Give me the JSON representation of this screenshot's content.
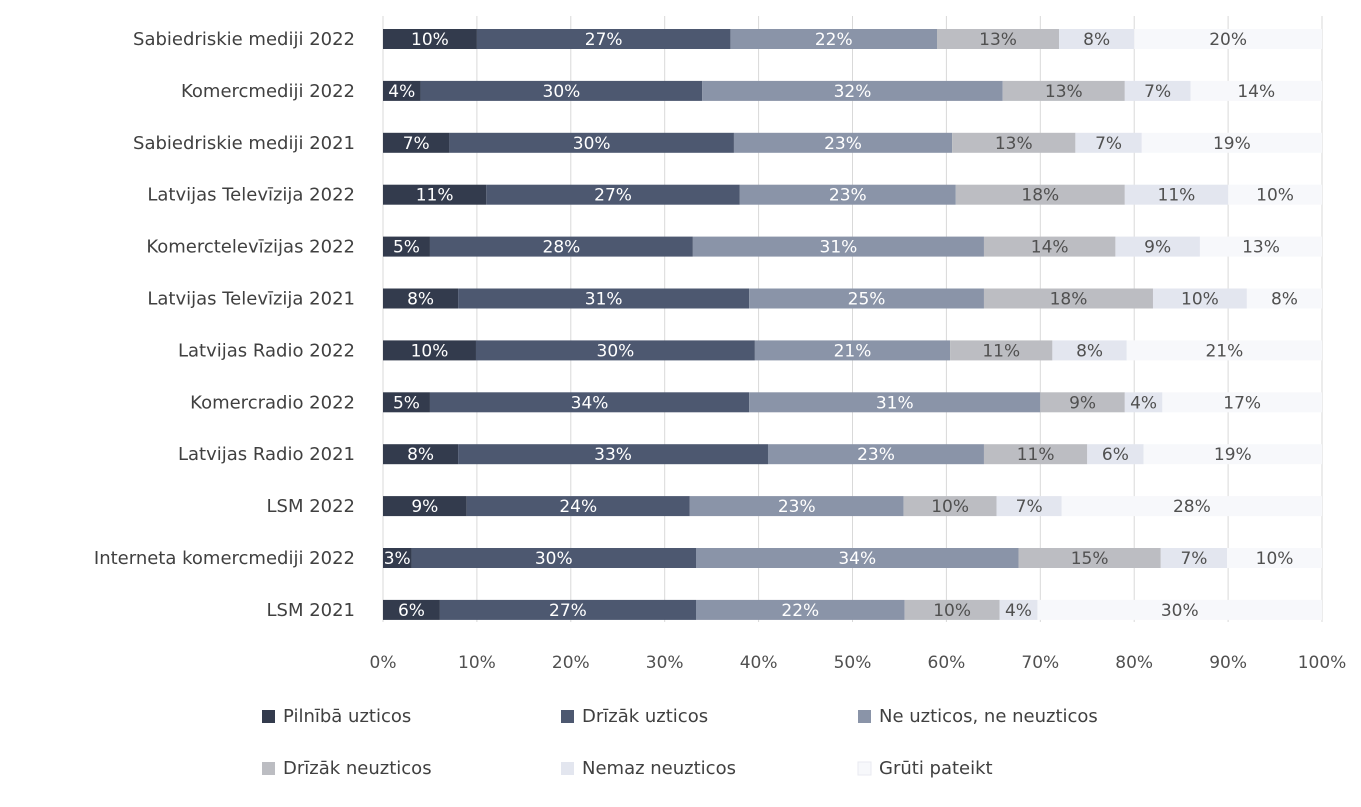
{
  "chart_data": {
    "type": "bar",
    "orientation": "horizontal",
    "stacked": true,
    "percent": true,
    "categories": [
      "Sabiedriskie mediji 2022",
      "Komercmediji 2022",
      "Sabiedriskie mediji 2021",
      "Latvijas Televīzija 2022",
      "Komerctelevīzijas 2022",
      "Latvijas Televīzija 2021",
      "Latvijas Radio 2022",
      "Komercradio 2022",
      "Latvijas Radio 2021",
      "LSM 2022",
      "Interneta komercmediji 2022",
      "LSM 2021"
    ],
    "series": [
      {
        "name": "Pilnībā uzticos",
        "color": "#333b4d",
        "label_color": "#ffffff",
        "values": [
          10,
          4,
          7,
          11,
          5,
          8,
          10,
          5,
          8,
          9,
          3,
          6
        ]
      },
      {
        "name": "Drīzāk uzticos",
        "color": "#4d5870",
        "label_color": "#ffffff",
        "values": [
          27,
          30,
          30,
          27,
          28,
          31,
          30,
          34,
          33,
          24,
          30,
          27
        ]
      },
      {
        "name": "Ne uzticos, ne neuzticos",
        "color": "#8a94a8",
        "label_color": "#ffffff",
        "values": [
          22,
          32,
          23,
          23,
          31,
          25,
          21,
          31,
          23,
          23,
          34,
          22
        ]
      },
      {
        "name": "Drīzāk neuzticos",
        "color": "#bcbdc2",
        "label_color": "#505050",
        "values": [
          13,
          13,
          13,
          18,
          14,
          18,
          11,
          9,
          11,
          10,
          15,
          10
        ]
      },
      {
        "name": "Nemaz neuzticos",
        "color": "#e3e6ef",
        "label_color": "#505050",
        "values": [
          8,
          7,
          7,
          11,
          9,
          10,
          8,
          4,
          6,
          7,
          7,
          4
        ]
      },
      {
        "name": "Grūti pateikt",
        "color": "#f7f8fb",
        "label_color": "#505050",
        "values": [
          20,
          14,
          19,
          10,
          13,
          8,
          21,
          17,
          19,
          28,
          10,
          30
        ]
      }
    ],
    "data_labels": [
      [
        "10%",
        "27%",
        "22%",
        "13%",
        "8%",
        "20%"
      ],
      [
        "4%",
        "30%",
        "32%",
        "13%",
        "7%",
        "14%"
      ],
      [
        "7%",
        "30%",
        "23%",
        "13%",
        "7%",
        "19%"
      ],
      [
        "11%",
        "27%",
        "23%",
        "18%",
        "11%",
        "10%"
      ],
      [
        "5%",
        "28%",
        "31%",
        "14%",
        "9%",
        "13%"
      ],
      [
        "8%",
        "31%",
        "25%",
        "18%",
        "10%",
        "8%"
      ],
      [
        "10%",
        "30%",
        "21%",
        "11%",
        "8%",
        "21%"
      ],
      [
        "5%",
        "34%",
        "31%",
        "9%",
        "4%",
        "17%"
      ],
      [
        "8%",
        "33%",
        "23%",
        "11%",
        "6%",
        "19%"
      ],
      [
        "9%",
        "24%",
        "23%",
        "10%",
        "7%",
        "28%"
      ],
      [
        "3%",
        "30%",
        "34%",
        "15%",
        "7%",
        "10%"
      ],
      [
        "6%",
        "27%",
        "22%",
        "10%",
        "4%",
        "30%"
      ]
    ],
    "x_ticks": [
      "0%",
      "10%",
      "20%",
      "30%",
      "40%",
      "50%",
      "60%",
      "70%",
      "80%",
      "90%",
      "100%"
    ],
    "xlim": [
      0,
      100
    ],
    "grid": true,
    "legend_position": "bottom"
  }
}
